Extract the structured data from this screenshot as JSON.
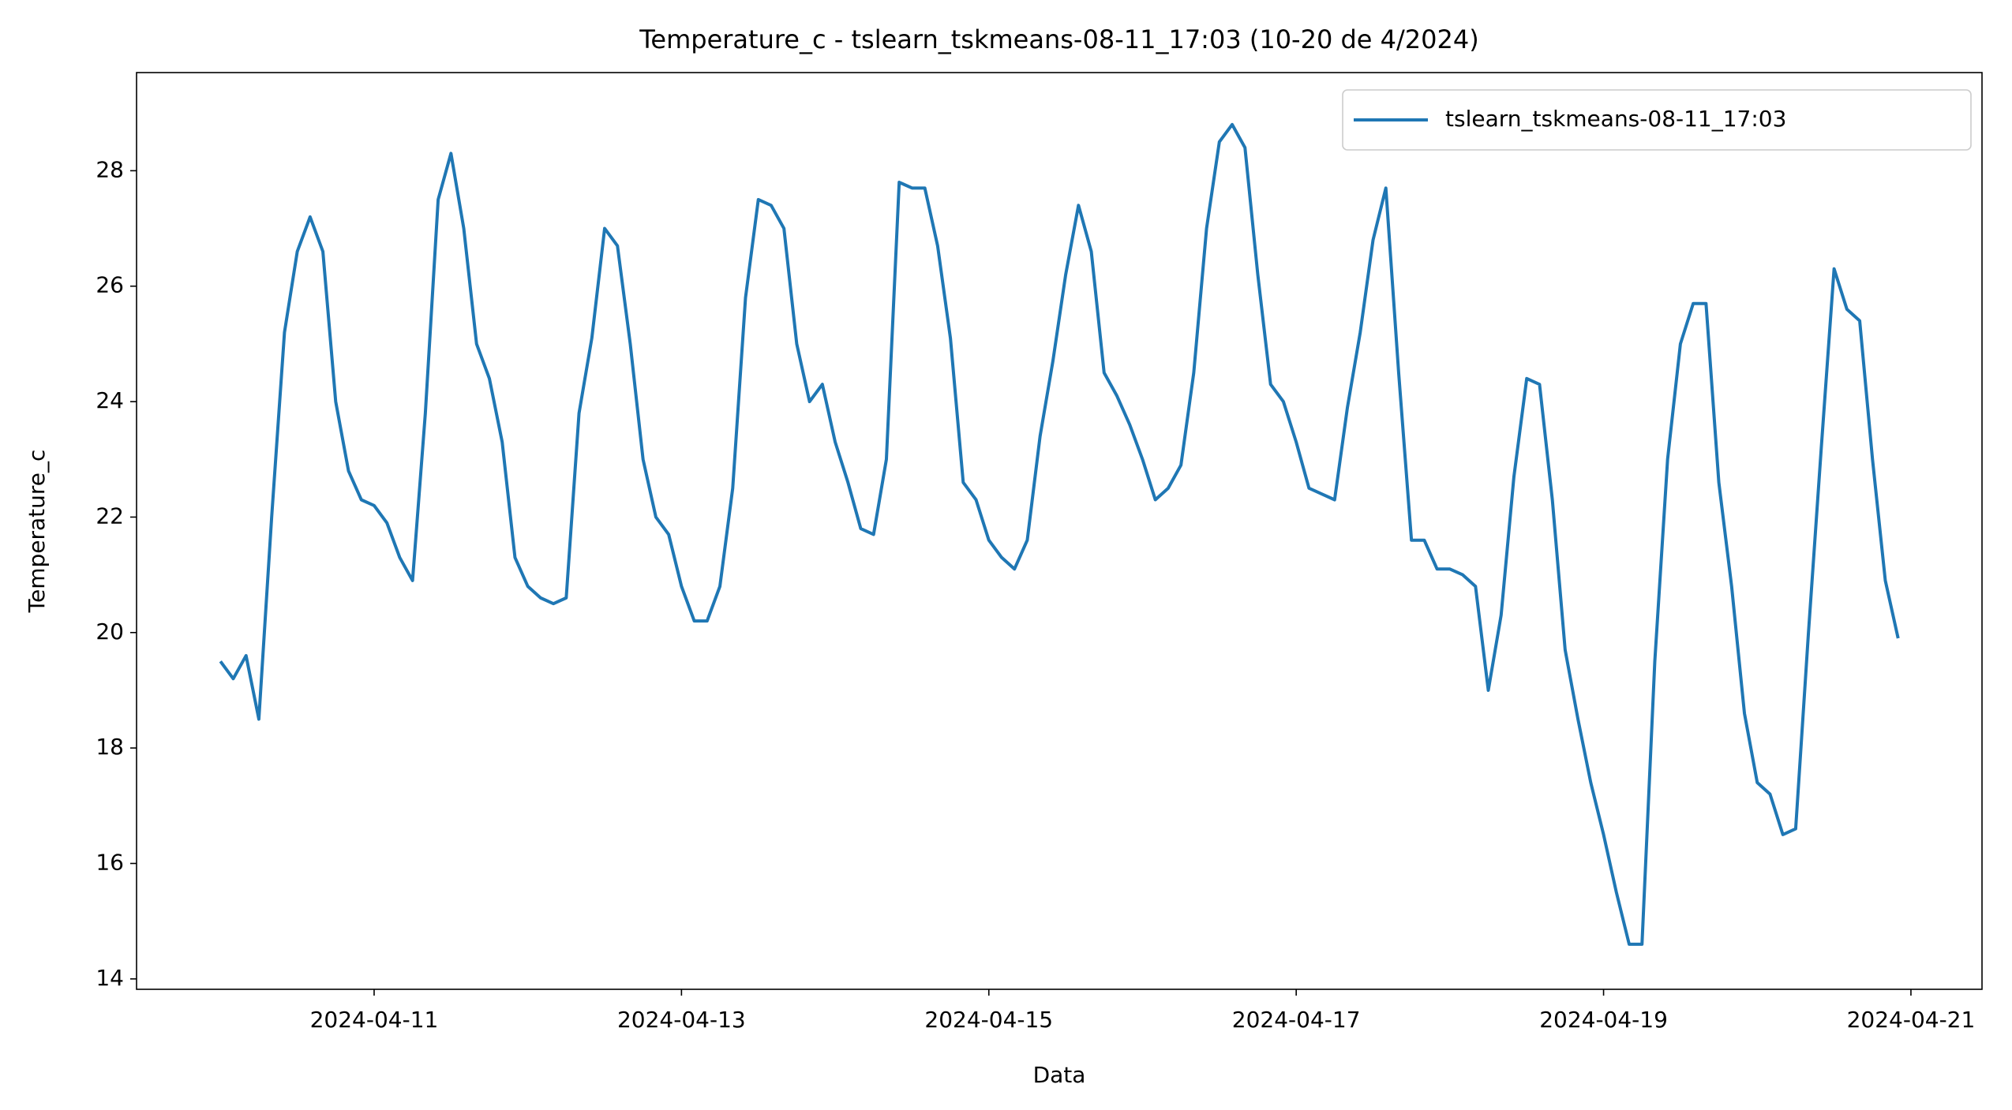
{
  "chart_data": {
    "type": "line",
    "title": "Temperature_c - tslearn_tskmeans-08-11_17:03 (10-20 de 4/2024)",
    "xlabel": "Data",
    "ylabel": "Temperature_c",
    "legend": "upper right",
    "x": [
      "2024-04-10T00:00",
      "2024-04-10T02:00",
      "2024-04-10T04:00",
      "2024-04-10T06:00",
      "2024-04-10T08:00",
      "2024-04-10T10:00",
      "2024-04-10T12:00",
      "2024-04-10T14:00",
      "2024-04-10T16:00",
      "2024-04-10T18:00",
      "2024-04-10T20:00",
      "2024-04-10T22:00",
      "2024-04-11T00:00",
      "2024-04-11T02:00",
      "2024-04-11T04:00",
      "2024-04-11T06:00",
      "2024-04-11T08:00",
      "2024-04-11T10:00",
      "2024-04-11T12:00",
      "2024-04-11T14:00",
      "2024-04-11T16:00",
      "2024-04-11T18:00",
      "2024-04-11T20:00",
      "2024-04-11T22:00",
      "2024-04-12T00:00",
      "2024-04-12T02:00",
      "2024-04-12T04:00",
      "2024-04-12T06:00",
      "2024-04-12T08:00",
      "2024-04-12T10:00",
      "2024-04-12T12:00",
      "2024-04-12T14:00",
      "2024-04-12T16:00",
      "2024-04-12T18:00",
      "2024-04-12T20:00",
      "2024-04-12T22:00",
      "2024-04-13T00:00",
      "2024-04-13T02:00",
      "2024-04-13T04:00",
      "2024-04-13T06:00",
      "2024-04-13T08:00",
      "2024-04-13T10:00",
      "2024-04-13T12:00",
      "2024-04-13T14:00",
      "2024-04-13T16:00",
      "2024-04-13T18:00",
      "2024-04-13T20:00",
      "2024-04-13T22:00",
      "2024-04-14T00:00",
      "2024-04-14T02:00",
      "2024-04-14T04:00",
      "2024-04-14T06:00",
      "2024-04-14T08:00",
      "2024-04-14T10:00",
      "2024-04-14T12:00",
      "2024-04-14T14:00",
      "2024-04-14T16:00",
      "2024-04-14T18:00",
      "2024-04-14T20:00",
      "2024-04-14T22:00",
      "2024-04-15T00:00",
      "2024-04-15T02:00",
      "2024-04-15T04:00",
      "2024-04-15T06:00",
      "2024-04-15T08:00",
      "2024-04-15T10:00",
      "2024-04-15T12:00",
      "2024-04-15T14:00",
      "2024-04-15T16:00",
      "2024-04-15T18:00",
      "2024-04-15T20:00",
      "2024-04-15T22:00",
      "2024-04-16T00:00",
      "2024-04-16T02:00",
      "2024-04-16T04:00",
      "2024-04-16T06:00",
      "2024-04-16T08:00",
      "2024-04-16T10:00",
      "2024-04-16T12:00",
      "2024-04-16T14:00",
      "2024-04-16T16:00",
      "2024-04-16T18:00",
      "2024-04-16T20:00",
      "2024-04-16T22:00",
      "2024-04-17T00:00",
      "2024-04-17T02:00",
      "2024-04-17T04:00",
      "2024-04-17T06:00",
      "2024-04-17T08:00",
      "2024-04-17T10:00",
      "2024-04-17T12:00",
      "2024-04-17T14:00",
      "2024-04-17T16:00",
      "2024-04-17T18:00",
      "2024-04-17T20:00",
      "2024-04-17T22:00",
      "2024-04-18T00:00",
      "2024-04-18T02:00",
      "2024-04-18T04:00",
      "2024-04-18T06:00",
      "2024-04-18T08:00",
      "2024-04-18T10:00",
      "2024-04-18T12:00",
      "2024-04-18T14:00",
      "2024-04-18T16:00",
      "2024-04-18T18:00",
      "2024-04-18T20:00",
      "2024-04-18T22:00",
      "2024-04-19T00:00",
      "2024-04-19T02:00",
      "2024-04-19T04:00",
      "2024-04-19T06:00",
      "2024-04-19T08:00",
      "2024-04-19T10:00",
      "2024-04-19T12:00",
      "2024-04-19T14:00",
      "2024-04-19T16:00",
      "2024-04-19T18:00",
      "2024-04-19T20:00",
      "2024-04-19T22:00",
      "2024-04-20T00:00",
      "2024-04-20T02:00",
      "2024-04-20T04:00",
      "2024-04-20T06:00",
      "2024-04-20T08:00",
      "2024-04-20T10:00",
      "2024-04-20T12:00",
      "2024-04-20T14:00",
      "2024-04-20T16:00",
      "2024-04-20T18:00",
      "2024-04-20T20:00",
      "2024-04-20T22:00"
    ],
    "series": [
      {
        "name": "tslearn_tskmeans-08-11_17:03",
        "color": "#1f77b4",
        "values": [
          19.5,
          19.2,
          19.6,
          18.5,
          22.0,
          25.2,
          26.6,
          27.2,
          26.6,
          24.0,
          22.8,
          22.3,
          22.2,
          21.9,
          21.3,
          20.9,
          23.8,
          27.5,
          28.3,
          27.0,
          25.0,
          24.4,
          23.3,
          21.3,
          20.8,
          20.6,
          20.5,
          20.6,
          23.8,
          25.1,
          27.0,
          26.7,
          25.0,
          23.0,
          22.0,
          21.7,
          20.8,
          20.2,
          20.2,
          20.8,
          22.5,
          25.8,
          27.5,
          27.4,
          27.0,
          25.0,
          24.0,
          24.3,
          23.3,
          22.6,
          21.8,
          21.7,
          23.0,
          27.8,
          27.7,
          27.7,
          26.7,
          25.1,
          22.6,
          22.3,
          21.6,
          21.3,
          21.1,
          21.6,
          23.4,
          24.7,
          26.2,
          27.4,
          26.6,
          24.5,
          24.1,
          23.6,
          23.0,
          22.3,
          22.5,
          22.9,
          24.5,
          27.0,
          28.5,
          28.8,
          28.4,
          26.2,
          24.3,
          24.0,
          23.3,
          22.5,
          22.4,
          22.3,
          23.9,
          25.2,
          26.8,
          27.7,
          24.5,
          21.6,
          21.6,
          21.1,
          21.1,
          21.0,
          20.8,
          19.0,
          20.3,
          22.7,
          24.4,
          24.3,
          22.3,
          19.7,
          18.5,
          17.4,
          16.5,
          15.5,
          14.6,
          14.6,
          19.5,
          23.0,
          25.0,
          25.7,
          25.7,
          22.6,
          20.8,
          18.6,
          17.4,
          17.2,
          16.5,
          16.6,
          20.0,
          23.2,
          26.3,
          25.6,
          25.4,
          23.0,
          20.9,
          19.9
        ]
      }
    ],
    "xlim": [
      "2024-04-09T10:54",
      "2024-04-21T11:06"
    ],
    "xticks": [
      "2024-04-11",
      "2024-04-13",
      "2024-04-15",
      "2024-04-17",
      "2024-04-19",
      "2024-04-21"
    ],
    "ylim": [
      13.82,
      29.7
    ],
    "yticks": [
      14,
      16,
      18,
      20,
      22,
      24,
      26,
      28
    ]
  }
}
